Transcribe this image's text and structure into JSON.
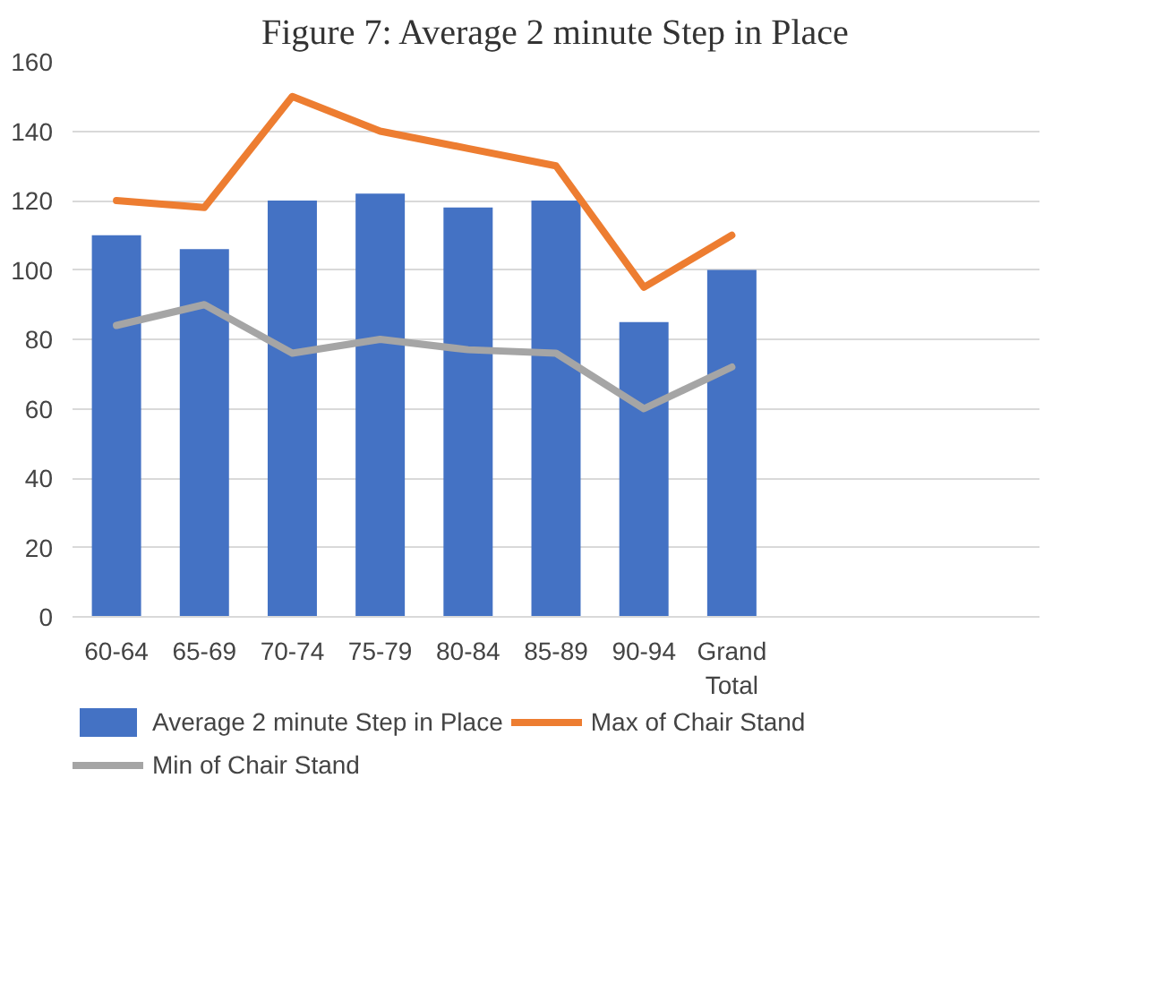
{
  "chart_data": {
    "type": "bar",
    "title": "Figure 7: Average 2 minute Step in Place",
    "categories": [
      "60-64",
      "65-69",
      "70-74",
      "75-79",
      "80-84",
      "85-89",
      "90-94",
      "Grand Total",
      null,
      null,
      null
    ],
    "series": [
      {
        "name": "Average 2 minute Step in Place",
        "color": "#4472c4",
        "values": [
          110,
          106,
          120,
          122,
          118,
          120,
          85,
          100,
          null,
          null,
          null
        ]
      },
      {
        "name": "Max of Chair Stand",
        "type": "line",
        "color": "#ed7d31",
        "values": [
          120,
          118,
          150,
          140,
          135,
          130,
          95,
          110,
          null,
          null,
          null
        ]
      },
      {
        "name": "Min of Chair Stand",
        "type": "line",
        "color": "#a5a5a5",
        "values": [
          84,
          90,
          76,
          80,
          77,
          76,
          60,
          72,
          null,
          null,
          null
        ]
      }
    ],
    "ylim": [
      0,
      160
    ],
    "yticks": [
      0,
      20,
      40,
      60,
      80,
      100,
      120,
      140,
      160
    ],
    "grid": "y",
    "legend": "bottom"
  }
}
